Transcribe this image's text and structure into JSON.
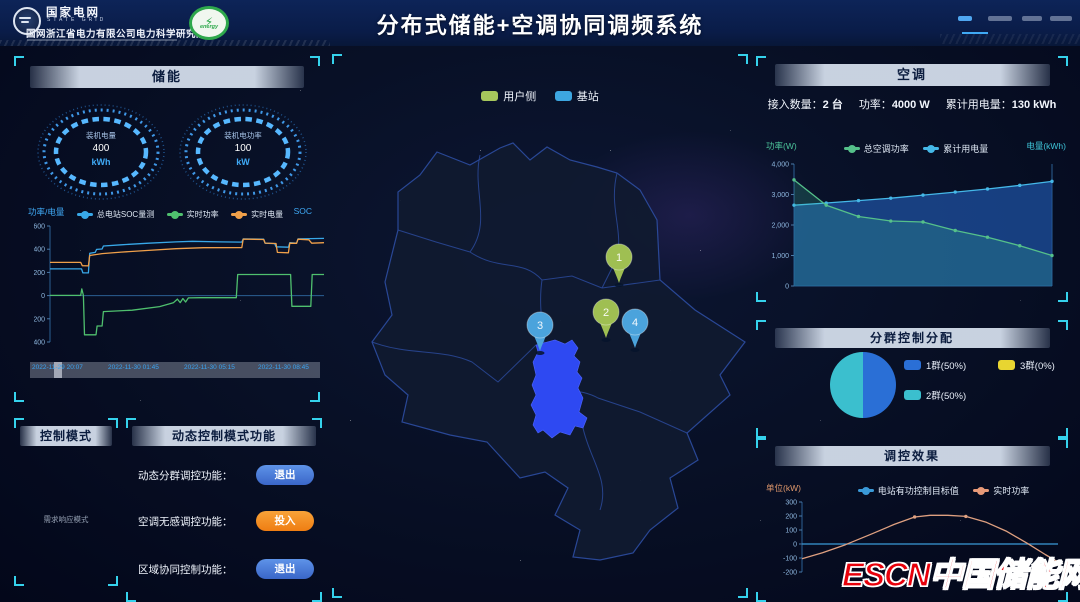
{
  "header": {
    "brand_cn": "国家电网",
    "brand_en": "STATE GRID",
    "org": "国网浙江省电力有限公司电力科学研究院",
    "energy_logo": "energy",
    "title": "分布式储能+空调协同调频系统"
  },
  "storage_panel": {
    "title": "储能",
    "gauges": [
      {
        "label": "装机电量",
        "value": "400",
        "unit": "kWh"
      },
      {
        "label": "装机电功率",
        "value": "100",
        "unit": "kW"
      }
    ],
    "axis_left": "功率/电量",
    "axis_right": "SOC"
  },
  "control_panel": {
    "title": "控制模式",
    "mode": "需求响应模式"
  },
  "dynamic_panel": {
    "title": "动态控制模式功能",
    "rows": [
      {
        "label": "动态分群调控功能：",
        "button": "退出"
      },
      {
        "label": "空调无感调控功能：",
        "button": "投入"
      },
      {
        "label": "区域协同控制功能：",
        "button": "退出"
      }
    ]
  },
  "map": {
    "legend": [
      {
        "label": "用户侧",
        "color": "#a6c75c"
      },
      {
        "label": "基站",
        "color": "#3da6e0"
      }
    ],
    "markers": [
      "1",
      "2",
      "3",
      "4"
    ]
  },
  "ac_panel": {
    "title": "空调",
    "stats": [
      {
        "label": "接入数量：",
        "value": "2 台"
      },
      {
        "label": "功率：",
        "value": "4000 W"
      },
      {
        "label": "累计用电量：",
        "value": "130 kWh"
      }
    ],
    "axis_left": "功率(W)",
    "axis_right": "电量(kWh)"
  },
  "group_panel": {
    "title": "分群控制分配",
    "legend": [
      {
        "label": "1群(50%)",
        "color": "#2a6fd6"
      },
      {
        "label": "3群(0%)",
        "color": "#e8d531"
      },
      {
        "label": "2群(50%)",
        "color": "#3bbfce"
      }
    ]
  },
  "effect_panel": {
    "title": "调控效果",
    "axis_left": "单位(kW)"
  },
  "watermark": "ESCN中国储能网",
  "chart_data": [
    {
      "target": "storage-chart",
      "type": "line",
      "title": "储能 SOC/实时功率/实时电量",
      "ylim": [
        -400,
        600
      ],
      "yticks": [
        [
          600,
          "600"
        ],
        [
          400,
          "400"
        ],
        [
          200,
          "200"
        ],
        [
          0,
          "0"
        ],
        [
          -200,
          "-200"
        ],
        [
          -400,
          "-400"
        ]
      ],
      "zero_line": true,
      "x_labels": [
        "2022-11-29 20:07",
        "2022-11-30 01:45",
        "2022-11-30 05:15",
        "2022-11-30 08:45"
      ],
      "series": [
        {
          "name": "总电站SOC量测",
          "color": "#38a8e8",
          "points": [
            [
              0,
              230
            ],
            [
              0.115,
              230
            ],
            [
              0.12,
              196
            ],
            [
              0.14,
              196
            ],
            [
              0.145,
              365
            ],
            [
              0.165,
              372
            ],
            [
              0.17,
              398
            ],
            [
              0.19,
              402
            ],
            [
              0.195,
              428
            ],
            [
              0.26,
              438
            ],
            [
              0.36,
              452
            ],
            [
              0.46,
              463
            ],
            [
              0.52,
              468
            ],
            [
              0.62,
              463
            ],
            [
              0.7,
              461
            ],
            [
              0.705,
              489
            ],
            [
              0.78,
              486
            ],
            [
              0.785,
              452
            ],
            [
              0.82,
              448
            ],
            [
              0.825,
              421
            ],
            [
              0.87,
              417
            ],
            [
              0.875,
              456
            ],
            [
              0.9,
              453
            ],
            [
              0.905,
              489
            ],
            [
              1,
              493
            ]
          ]
        },
        {
          "name": "实时功率",
          "color": "#4fc06e",
          "points": [
            [
              0,
              2
            ],
            [
              0.112,
              2
            ],
            [
              0.116,
              58
            ],
            [
              0.122,
              2
            ],
            [
              0.126,
              -338
            ],
            [
              0.168,
              -338
            ],
            [
              0.172,
              -262
            ],
            [
              0.19,
              -262
            ],
            [
              0.195,
              -138
            ],
            [
              0.3,
              -126
            ],
            [
              0.4,
              -95
            ],
            [
              0.45,
              -62
            ],
            [
              0.465,
              -30
            ],
            [
              0.475,
              -60
            ],
            [
              0.485,
              -25
            ],
            [
              0.495,
              -55
            ],
            [
              0.505,
              -20
            ],
            [
              0.55,
              -18
            ],
            [
              0.68,
              -18
            ],
            [
              0.685,
              182
            ],
            [
              0.878,
              182
            ],
            [
              0.883,
              -92
            ],
            [
              0.952,
              -92
            ],
            [
              0.957,
              182
            ],
            [
              1,
              182
            ]
          ]
        },
        {
          "name": "实时电量",
          "color": "#f0a04a",
          "points": [
            [
              0,
              286
            ],
            [
              0.112,
              286
            ],
            [
              0.118,
              258
            ],
            [
              0.14,
              256
            ],
            [
              0.145,
              346
            ],
            [
              0.19,
              362
            ],
            [
              0.26,
              375
            ],
            [
              0.36,
              390
            ],
            [
              0.46,
              404
            ],
            [
              0.56,
              413
            ],
            [
              0.7,
              414
            ],
            [
              0.705,
              487
            ],
            [
              0.78,
              484
            ],
            [
              0.785,
              453
            ],
            [
              0.825,
              449
            ],
            [
              0.83,
              372
            ],
            [
              0.87,
              369
            ],
            [
              0.875,
              452
            ],
            [
              0.9,
              451
            ],
            [
              0.905,
              486
            ],
            [
              0.945,
              481
            ],
            [
              0.955,
              452
            ],
            [
              1,
              456
            ]
          ]
        }
      ]
    },
    {
      "target": "ac-chart",
      "type": "area",
      "title": "空调 总功率/累计用电量",
      "ylim": [
        0,
        4000
      ],
      "yticks": [
        [
          4000,
          "4,000"
        ],
        [
          3000,
          "3,000"
        ],
        [
          2000,
          "2,000"
        ],
        [
          1000,
          "1,000"
        ],
        [
          0,
          "0"
        ]
      ],
      "baseline": 0,
      "series": [
        {
          "name": "累计用电量",
          "color": "#45b8e8",
          "area": "rgba(30,80,160,0.75)",
          "dots": "all",
          "values": [
            2650,
            2720,
            2800,
            2880,
            2980,
            3080,
            3180,
            3300,
            3430
          ]
        },
        {
          "name": "总空调功率",
          "color": "#55c08a",
          "area": "rgba(60,190,150,0.22)",
          "dots": "all",
          "values": [
            3480,
            2650,
            2280,
            2130,
            2100,
            1820,
            1600,
            1320,
            1000
          ]
        }
      ]
    },
    {
      "target": "effect-chart",
      "type": "line",
      "title": "调控效果",
      "ylim": [
        -200,
        300
      ],
      "yticks": [
        [
          300,
          "300"
        ],
        [
          200,
          "200"
        ],
        [
          100,
          "100"
        ],
        [
          0,
          "0"
        ],
        [
          -100,
          "-100"
        ],
        [
          -200,
          "-200"
        ]
      ],
      "series": [
        {
          "name": "电站有功控制目标值",
          "color": "#3a9ad8",
          "points": [
            [
              0,
              0
            ],
            [
              1,
              0
            ]
          ]
        },
        {
          "name": "实时功率",
          "color": "#dfa080",
          "dots": [
            5,
            8
          ],
          "points": [
            [
              0,
              -105
            ],
            [
              0.08,
              -62
            ],
            [
              0.17,
              -5
            ],
            [
              0.27,
              70
            ],
            [
              0.36,
              140
            ],
            [
              0.44,
              193
            ],
            [
              0.5,
              205
            ],
            [
              0.57,
              205
            ],
            [
              0.64,
              197
            ],
            [
              0.72,
              155
            ],
            [
              0.8,
              90
            ],
            [
              0.88,
              5
            ],
            [
              0.95,
              -75
            ],
            [
              1,
              -128
            ]
          ]
        }
      ]
    },
    {
      "target": "group-pie",
      "type": "pie",
      "title": "分群控制分配",
      "slices": [
        {
          "label": "1群",
          "value": 50,
          "color": "#2a6fd6"
        },
        {
          "label": "2群",
          "value": 50,
          "color": "#3bbfce"
        },
        {
          "label": "3群",
          "value": 0,
          "color": "#e8d531"
        }
      ]
    }
  ]
}
